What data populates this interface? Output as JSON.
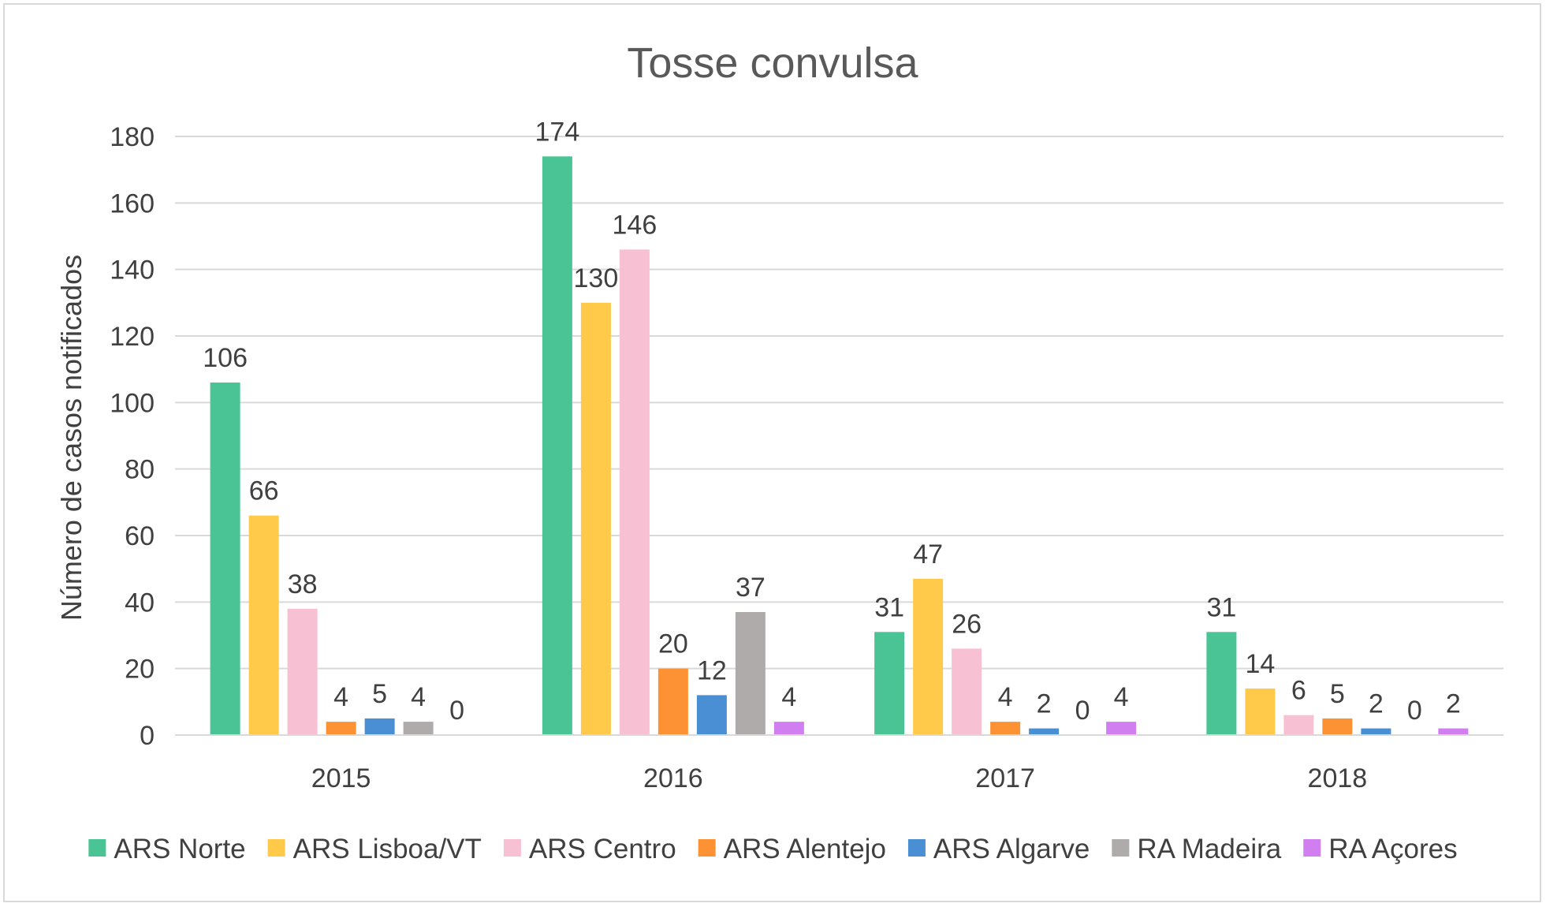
{
  "chart_data": {
    "type": "bar",
    "title": "Tosse convulsa",
    "xlabel": "",
    "ylabel": "Número de casos notificados",
    "categories": [
      "2015",
      "2016",
      "2017",
      "2018"
    ],
    "ylim": [
      0,
      180
    ],
    "yticks": [
      0,
      20,
      40,
      60,
      80,
      100,
      120,
      140,
      160,
      180
    ],
    "grid": true,
    "legend_position": "bottom",
    "series": [
      {
        "name": "ARS Norte",
        "color": "#4bc495",
        "values": [
          106,
          174,
          31,
          31
        ]
      },
      {
        "name": "ARS Lisboa/VT",
        "color": "#ffc94a",
        "values": [
          66,
          130,
          47,
          14
        ]
      },
      {
        "name": "ARS Centro",
        "color": "#f8c0d3",
        "values": [
          38,
          146,
          26,
          6
        ]
      },
      {
        "name": "ARS Alentejo",
        "color": "#fd9234",
        "values": [
          4,
          20,
          4,
          5
        ]
      },
      {
        "name": "ARS Algarve",
        "color": "#4a8fd4",
        "values": [
          5,
          12,
          2,
          2
        ]
      },
      {
        "name": "RA Madeira",
        "color": "#afabab",
        "values": [
          4,
          37,
          0,
          0
        ]
      },
      {
        "name": "RA Açores",
        "color": "#d17ef0",
        "values": [
          0,
          4,
          4,
          2
        ]
      }
    ]
  }
}
